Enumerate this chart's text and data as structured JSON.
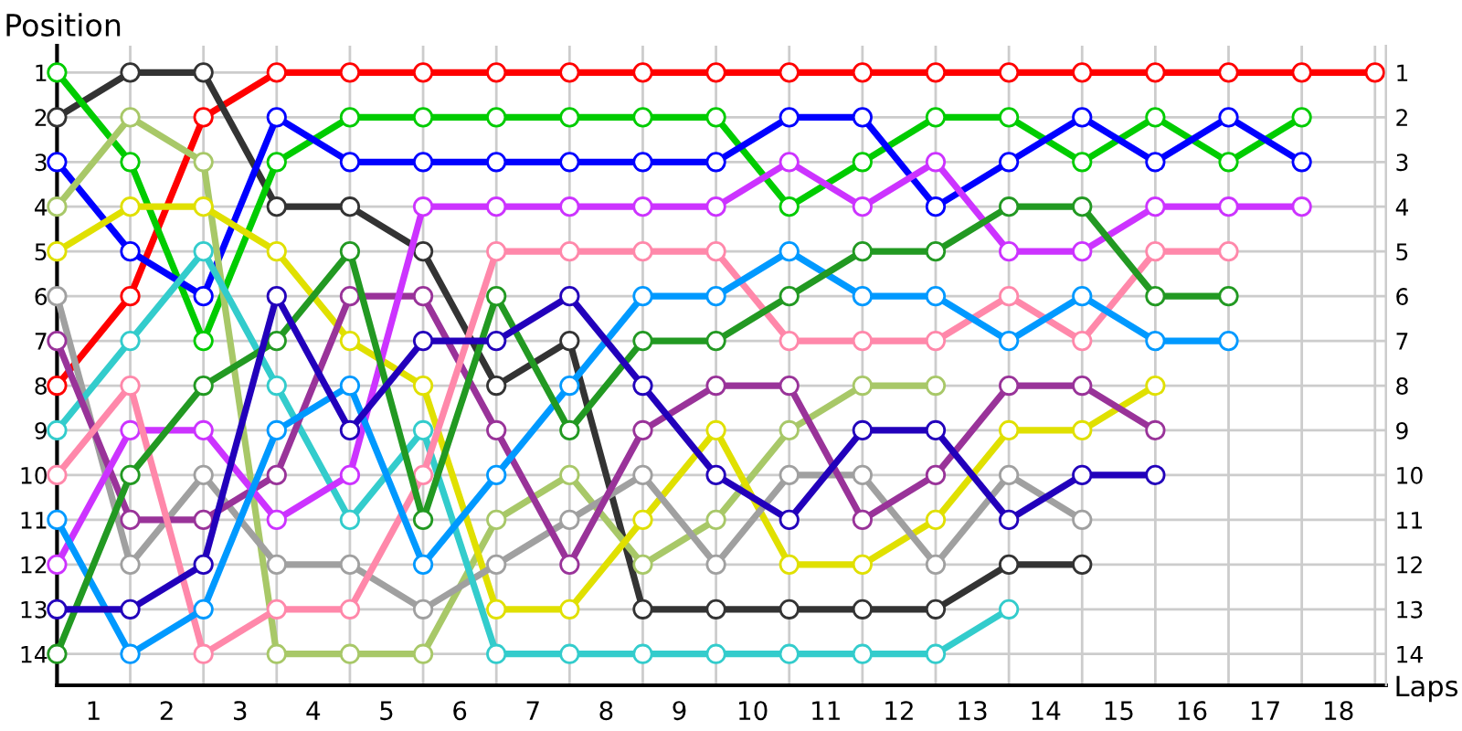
{
  "chart_data": {
    "type": "line",
    "xlabel": "Laps",
    "ylabel": "Position",
    "x": [
      0,
      1,
      2,
      3,
      4,
      5,
      6,
      7,
      8,
      9,
      10,
      11,
      12,
      13,
      14,
      15,
      16,
      17,
      18
    ],
    "series": [
      {
        "color": "#ff0000",
        "values": [
          8,
          6,
          2,
          1,
          1,
          1,
          1,
          1,
          1,
          1,
          1,
          1,
          1,
          1,
          1,
          1,
          1,
          1,
          1
        ]
      },
      {
        "color": "#333333",
        "values": [
          2,
          1,
          1,
          4,
          4,
          5,
          8,
          7,
          13,
          13,
          13,
          13,
          13,
          12,
          12,
          null,
          null,
          null,
          null
        ]
      },
      {
        "color": "#00cc00",
        "values": [
          1,
          3,
          7,
          3,
          2,
          2,
          2,
          2,
          2,
          2,
          4,
          3,
          2,
          2,
          3,
          2,
          3,
          2,
          null
        ]
      },
      {
        "color": "#0000ff",
        "values": [
          3,
          5,
          6,
          2,
          3,
          3,
          3,
          3,
          3,
          3,
          2,
          2,
          4,
          3,
          2,
          3,
          2,
          3,
          null
        ]
      },
      {
        "color": "#a8c868",
        "values": [
          4,
          2,
          3,
          14,
          14,
          14,
          11,
          10,
          12,
          11,
          9,
          8,
          8,
          null,
          null,
          null,
          null,
          null,
          null
        ]
      },
      {
        "color": "#e0e000",
        "values": [
          5,
          4,
          4,
          5,
          7,
          8,
          13,
          13,
          11,
          9,
          12,
          12,
          11,
          9,
          9,
          8,
          null,
          null,
          null
        ]
      },
      {
        "color": "#a0a0a0",
        "values": [
          6,
          12,
          10,
          12,
          12,
          13,
          12,
          11,
          10,
          12,
          10,
          10,
          12,
          10,
          11,
          null,
          null,
          null,
          null
        ]
      },
      {
        "color": "#33cccc",
        "values": [
          9,
          7,
          5,
          8,
          11,
          9,
          14,
          14,
          14,
          14,
          14,
          14,
          14,
          13,
          null,
          null,
          null,
          null,
          null
        ]
      },
      {
        "color": "#993399",
        "values": [
          7,
          11,
          11,
          10,
          6,
          6,
          9,
          12,
          9,
          8,
          8,
          11,
          10,
          8,
          8,
          9,
          null,
          null,
          null
        ]
      },
      {
        "color": "#cc33ff",
        "values": [
          12,
          9,
          9,
          11,
          10,
          4,
          4,
          4,
          4,
          4,
          3,
          4,
          3,
          5,
          5,
          4,
          4,
          4,
          null
        ]
      },
      {
        "color": "#ff88aa",
        "values": [
          10,
          8,
          14,
          13,
          13,
          10,
          5,
          5,
          5,
          5,
          7,
          7,
          7,
          6,
          7,
          5,
          5,
          null,
          null
        ]
      },
      {
        "color": "#0099ff",
        "values": [
          11,
          14,
          13,
          9,
          8,
          12,
          10,
          8,
          6,
          6,
          5,
          6,
          6,
          7,
          6,
          7,
          7,
          null,
          null
        ]
      },
      {
        "color": "#229922",
        "values": [
          14,
          10,
          8,
          7,
          5,
          11,
          6,
          9,
          7,
          7,
          6,
          5,
          5,
          4,
          4,
          6,
          6,
          null,
          null
        ]
      },
      {
        "color": "#2200bb",
        "values": [
          13,
          13,
          12,
          6,
          9,
          7,
          7,
          6,
          8,
          10,
          11,
          9,
          9,
          11,
          10,
          10,
          null,
          null,
          null
        ]
      }
    ],
    "xlim": [
      0,
      18.15
    ],
    "xticks": [
      {
        "value": 0,
        "label": null
      },
      {
        "value": 1,
        "label": null
      },
      {
        "value": 2,
        "label": null
      },
      {
        "value": 3,
        "label": null
      },
      {
        "value": 4,
        "label": null
      },
      {
        "value": 5,
        "label": null
      },
      {
        "value": 6,
        "label": null
      },
      {
        "value": 7,
        "label": null
      },
      {
        "value": 8,
        "label": null
      },
      {
        "value": 9,
        "label": null
      },
      {
        "value": 10,
        "label": null
      },
      {
        "value": 11,
        "label": null
      },
      {
        "value": 12,
        "label": null
      },
      {
        "value": 13,
        "label": null
      },
      {
        "value": 14,
        "label": null
      },
      {
        "value": 15,
        "label": null
      },
      {
        "value": 16,
        "label": null
      },
      {
        "value": 17,
        "label": null
      },
      {
        "value": 18,
        "label": null
      },
      {
        "value": 0.5,
        "label": "1"
      },
      {
        "value": 1.5,
        "label": "2"
      },
      {
        "value": 2.5,
        "label": "3"
      },
      {
        "value": 3.5,
        "label": "4"
      },
      {
        "value": 4.5,
        "label": "5"
      },
      {
        "value": 5.5,
        "label": "6"
      },
      {
        "value": 6.5,
        "label": "7"
      },
      {
        "value": 7.5,
        "label": "8"
      },
      {
        "value": 8.5,
        "label": "9"
      },
      {
        "value": 9.5,
        "label": "10"
      },
      {
        "value": 10.5,
        "label": "11"
      },
      {
        "value": 11.5,
        "label": "12"
      },
      {
        "value": 12.5,
        "label": "13"
      },
      {
        "value": 13.5,
        "label": "14"
      },
      {
        "value": 14.5,
        "label": "15"
      },
      {
        "value": 15.5,
        "label": "16"
      },
      {
        "value": 16.5,
        "label": "17"
      },
      {
        "value": 17.5,
        "label": "18"
      }
    ],
    "ylim": [
      14.7,
      0.4
    ],
    "yticks": [
      1,
      2,
      3,
      4,
      5,
      6,
      7,
      8,
      9,
      10,
      11,
      12,
      13,
      14
    ],
    "y2lim": [
      14.7,
      0.4
    ],
    "y2ticks": [
      1,
      2,
      3,
      4,
      5,
      6,
      7,
      8,
      9,
      10,
      11,
      12,
      13,
      14
    ],
    "grid": true,
    "marker": "circle",
    "line_style": "solid",
    "legend": false
  }
}
